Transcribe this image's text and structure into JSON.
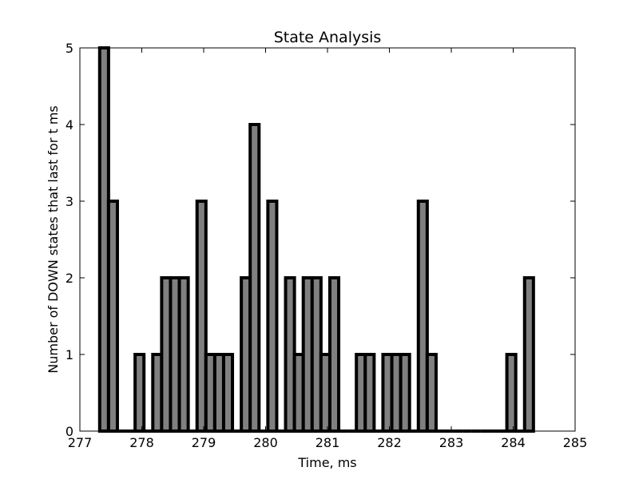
{
  "chart_data": {
    "type": "bar",
    "title": "State Analysis",
    "xlabel": "Time, ms",
    "ylabel": "Number of DOWN states that last for t ms",
    "xlim": [
      277,
      285
    ],
    "ylim": [
      0,
      5
    ],
    "xticks": [
      "277",
      "278",
      "279",
      "280",
      "281",
      "282",
      "283",
      "284",
      "285"
    ],
    "yticks": [
      "0",
      "1",
      "2",
      "3",
      "4",
      "5"
    ],
    "bin_start": 277.32,
    "bin_width": 0.143,
    "counts": [
      5,
      3,
      0,
      0,
      1,
      0,
      1,
      2,
      2,
      2,
      0,
      3,
      1,
      1,
      1,
      0,
      2,
      4,
      0,
      3,
      0,
      2,
      1,
      2,
      2,
      1,
      2,
      0,
      0,
      1,
      1,
      0,
      1,
      1,
      1,
      0,
      3,
      1,
      0,
      0,
      0,
      0,
      0,
      0,
      0,
      0,
      1,
      0,
      2
    ],
    "bar_color": "#808080",
    "edge_color": "#000000",
    "grid": false
  }
}
